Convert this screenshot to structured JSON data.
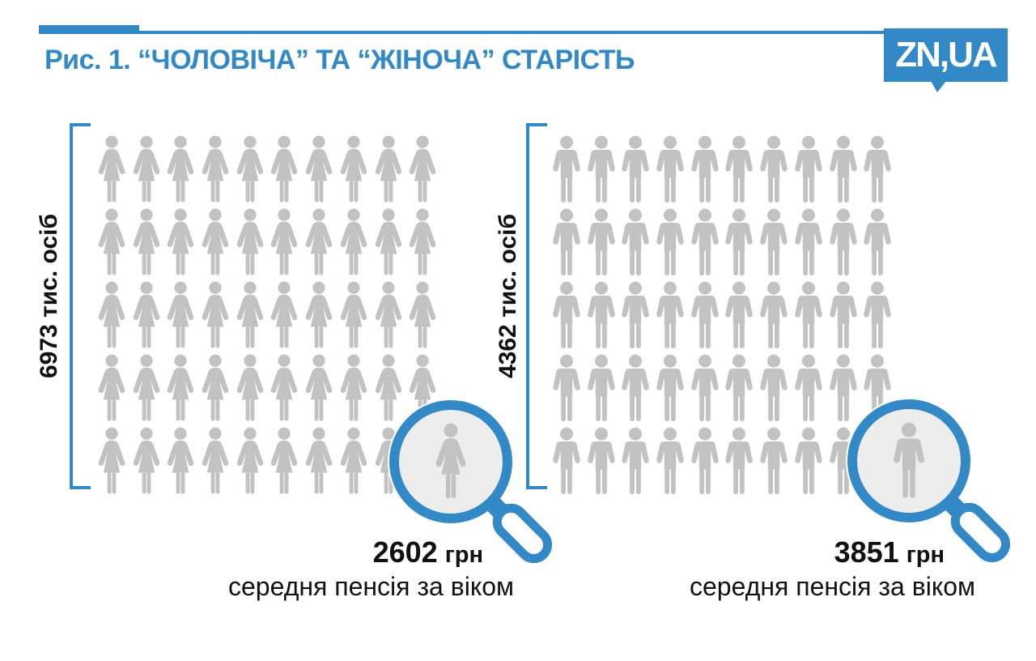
{
  "header": {
    "figure_title": "Рис. 1. “ЧОЛОВІЧА” ТА “ЖІНОЧА” СТАРІСТЬ",
    "logo": "ZN,UA"
  },
  "colors": {
    "accent_blue": "#3389c6",
    "icon_gray": "#c2c2c2",
    "lens_fill": "#ededed",
    "text_black": "#111111"
  },
  "chart_data": {
    "type": "pictogram",
    "title": "Рис. 1. “ЧОЛОВІЧА” ТА “ЖІНОЧА” СТАРІСТЬ",
    "source_logo": "ZN,UA",
    "groups": [
      {
        "name": "women",
        "icon": "woman",
        "count_label": "6973 тис. осіб",
        "count_value_thousands": 6973,
        "pictogram": {
          "rows": 5,
          "cols": 10,
          "icons_shown": 49
        },
        "highlight_value": "2602",
        "highlight_unit": "грн",
        "highlight_caption": "середня пенсія за віком"
      },
      {
        "name": "men",
        "icon": "man",
        "count_label": "4362 тис. осіб",
        "count_value_thousands": 4362,
        "pictogram": {
          "rows": 5,
          "cols": 10,
          "icons_shown": 49
        },
        "highlight_value": "3851",
        "highlight_unit": "грн",
        "highlight_caption": "середня пенсія за віком"
      }
    ]
  }
}
